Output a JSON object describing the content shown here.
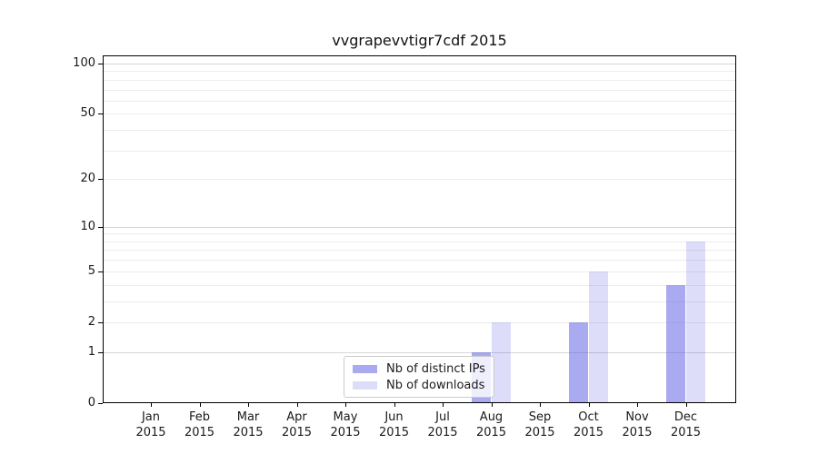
{
  "title": "vvgrapevvtigr7cdf 2015",
  "chart_data": {
    "type": "bar",
    "title": "vvgrapevvtigr7cdf 2015",
    "categories": [
      "Jan 2015",
      "Feb 2015",
      "Mar 2015",
      "Apr 2015",
      "May 2015",
      "Jun 2015",
      "Jul 2015",
      "Aug 2015",
      "Sep 2015",
      "Oct 2015",
      "Nov 2015",
      "Dec 2015"
    ],
    "series": [
      {
        "name": "Nb of distinct IPs",
        "values": [
          0,
          0,
          0,
          0,
          0,
          0,
          0,
          1,
          0,
          2,
          0,
          4
        ],
        "fill": "rgba(85,85,225,0.5)",
        "rendered_hex_over_white": "#aaaaf0"
      },
      {
        "name": "Nb of downloads",
        "values": [
          0,
          0,
          0,
          0,
          0,
          0,
          0,
          2,
          0,
          5,
          0,
          8
        ],
        "fill": "rgba(85,85,225,0.2)",
        "rendered_hex_over_white": "#ddddf9"
      }
    ],
    "xlabel": "",
    "ylabel": "",
    "yscale": "log1p",
    "ytick_labels": [
      0,
      1,
      2,
      5,
      10,
      20,
      50,
      100
    ],
    "ylim": [
      0,
      112
    ],
    "grid": "horizontal",
    "grid_minor_values": [
      2,
      3,
      4,
      5,
      6,
      7,
      8,
      9,
      20,
      30,
      40,
      50,
      60,
      70,
      80,
      90
    ],
    "grid_major_values": [
      1,
      10,
      100
    ],
    "legend_position": "lower-center",
    "legend_entries": [
      "Nb of distinct IPs",
      "Nb of downloads"
    ]
  },
  "colors": {
    "background": "#ffffff",
    "spine": "#000000",
    "text": "#1a1a1a",
    "grid_major": "#d6d6d6",
    "grid_minor": "#ececec",
    "legend_border": "#cccccc",
    "legend_bg": "rgba(255,255,255,0.8)"
  }
}
